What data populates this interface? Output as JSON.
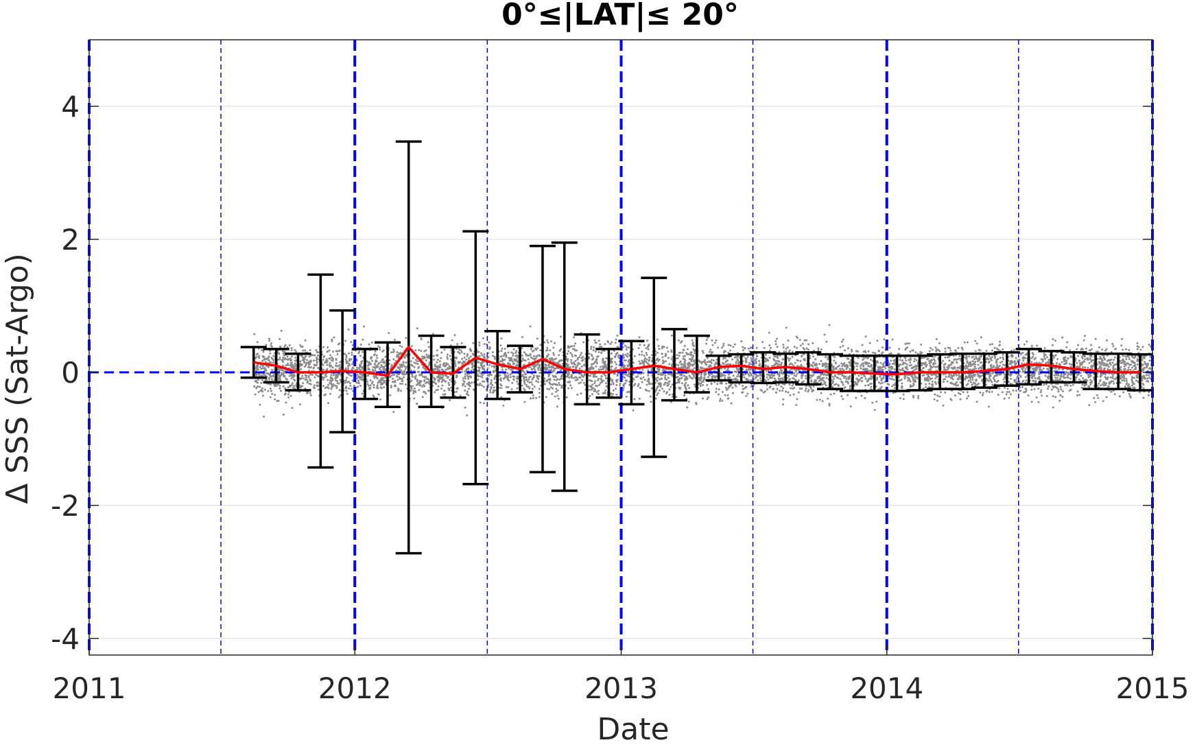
{
  "chart_data": {
    "type": "scatter",
    "title": "0°≤|LAT|≤ 20°",
    "xlabel": "Date",
    "ylabel": "Δ SSS (Sat-Argo)",
    "xlim": [
      "2011-01-01",
      "2015-01-01"
    ],
    "ylim": [
      -4.25,
      5
    ],
    "xticks": [
      "2011",
      "2012",
      "2013",
      "2014",
      "2015"
    ],
    "yticks": [
      -4,
      -2,
      0,
      2,
      4
    ],
    "ytick_labels": [
      "-4",
      "-2",
      "0",
      "2",
      "4"
    ],
    "grid": "horizontal",
    "vertical_reference_lines": {
      "year_boundaries": [
        "2011-01-01",
        "2012-01-01",
        "2013-01-01",
        "2014-01-01",
        "2015-01-01"
      ],
      "mid_years": [
        "2011-07-01",
        "2012-07-01",
        "2013-07-01",
        "2014-07-01"
      ]
    },
    "zero_reference_line": {
      "y": 0,
      "style": "dashed"
    },
    "scatter_series": {
      "description_color": "gray",
      "x_range": [
        "2011-08-15",
        "2015-01-01"
      ],
      "typical_spread": [
        -0.6,
        0.6
      ]
    },
    "series": [
      {
        "type": "errorbar",
        "x": [
          "2011-08-15",
          "2011-09-15",
          "2011-10-15",
          "2011-11-15",
          "2011-12-15",
          "2012-01-15",
          "2012-02-15",
          "2012-03-15",
          "2012-04-15",
          "2012-05-15",
          "2012-06-15",
          "2012-07-15",
          "2012-08-15",
          "2012-09-15",
          "2012-10-15",
          "2012-11-15",
          "2012-12-15",
          "2013-01-15",
          "2013-02-15",
          "2013-03-15",
          "2013-04-15",
          "2013-05-15",
          "2013-06-15",
          "2013-07-15",
          "2013-08-15",
          "2013-09-15",
          "2013-10-15",
          "2013-11-15",
          "2013-12-15",
          "2014-01-15",
          "2014-02-15",
          "2014-03-15",
          "2014-04-15",
          "2014-05-15",
          "2014-06-15",
          "2014-07-15",
          "2014-08-15",
          "2014-09-15",
          "2014-10-15",
          "2014-11-15",
          "2014-12-15"
        ],
        "mean": [
          0.15,
          0.1,
          0.0,
          0.0,
          0.02,
          0.0,
          -0.05,
          0.38,
          0.0,
          -0.02,
          0.22,
          0.12,
          0.05,
          0.2,
          0.05,
          0.0,
          0.0,
          0.05,
          0.1,
          0.05,
          0.0,
          0.08,
          0.1,
          0.05,
          0.08,
          0.05,
          0.0,
          0.0,
          -0.02,
          -0.03,
          0.0,
          0.0,
          0.0,
          0.02,
          0.05,
          0.12,
          0.1,
          0.05,
          0.02,
          0.0,
          0.0
        ],
        "lower": [
          -0.08,
          -0.15,
          -0.27,
          -1.43,
          -0.9,
          -0.4,
          -0.52,
          -2.72,
          -0.52,
          -0.38,
          -1.68,
          -0.4,
          -0.3,
          -1.5,
          -1.78,
          -0.48,
          -0.38,
          -0.48,
          -1.27,
          -0.42,
          -0.3,
          -0.12,
          -0.15,
          -0.16,
          -0.15,
          -0.18,
          -0.25,
          -0.28,
          -0.28,
          -0.28,
          -0.27,
          -0.25,
          -0.25,
          -0.23,
          -0.2,
          -0.18,
          -0.15,
          -0.15,
          -0.25,
          -0.25,
          -0.27
        ],
        "upper": [
          0.38,
          0.35,
          0.28,
          1.47,
          0.93,
          0.35,
          0.45,
          3.47,
          0.55,
          0.38,
          2.12,
          0.62,
          0.4,
          1.9,
          1.95,
          0.57,
          0.35,
          0.47,
          1.42,
          0.65,
          0.55,
          0.25,
          0.27,
          0.3,
          0.28,
          0.3,
          0.27,
          0.25,
          0.25,
          0.25,
          0.25,
          0.27,
          0.28,
          0.28,
          0.3,
          0.35,
          0.32,
          0.3,
          0.28,
          0.28,
          0.27
        ]
      }
    ]
  },
  "colors": {
    "scatter": "#8c8c8c",
    "errorbar": "#000000",
    "mean_line": "#ff0000",
    "reference_lines": "#0000ff",
    "grid": "#e6e6e6",
    "axis": "#262626"
  }
}
